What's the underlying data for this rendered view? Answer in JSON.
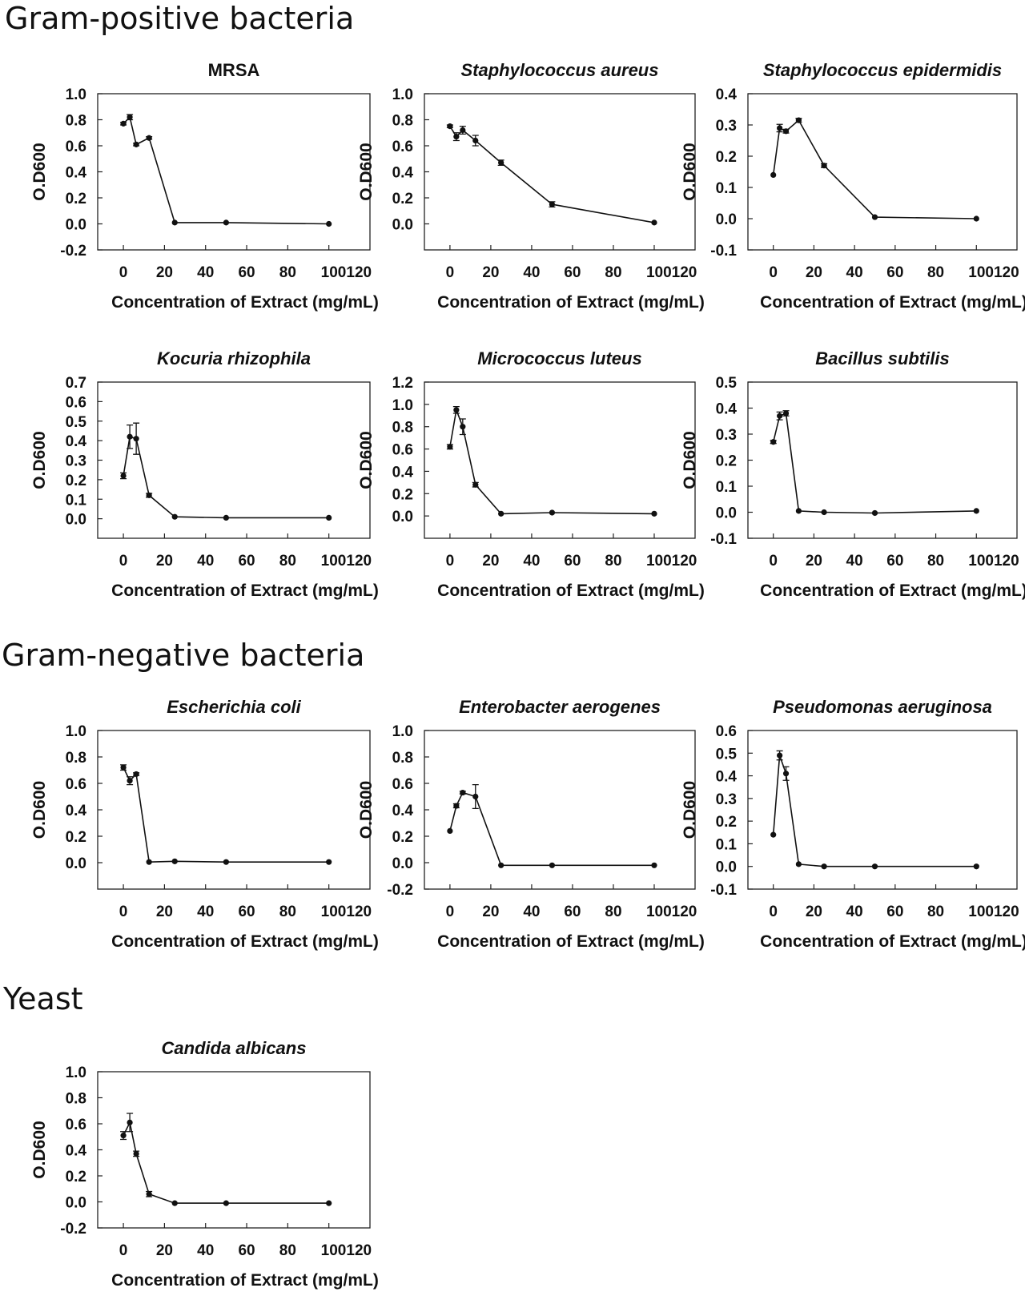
{
  "sections": [
    {
      "title": "Gram-positive bacteria"
    },
    {
      "title": "Gram-negative bacteria"
    },
    {
      "title": "Yeast"
    }
  ],
  "chart_data": [
    {
      "type": "line",
      "section": 0,
      "title": "MRSA",
      "title_italic": false,
      "xlabel": "Concentration of Extract (mg/mL)",
      "ylabel": "O.D600",
      "xlim": [
        -12.5,
        120
      ],
      "ylim": [
        -0.2,
        1.0
      ],
      "x_ticks": [
        "0",
        "20",
        "40",
        "60",
        "80",
        "100120"
      ],
      "x_tick_values": [
        0,
        20,
        40,
        60,
        80,
        100
      ],
      "y_ticks": [
        "-0.2",
        "0.0",
        "0.2",
        "0.4",
        "0.6",
        "0.8",
        "1.0"
      ],
      "y_tick_values": [
        -0.2,
        0,
        0.2,
        0.4,
        0.6,
        0.8,
        1.0
      ],
      "x": [
        0,
        3.125,
        6.25,
        12.5,
        25,
        50,
        100
      ],
      "y": [
        0.77,
        0.82,
        0.61,
        0.66,
        0.01,
        0.01,
        0.0
      ],
      "err": [
        0.01,
        0.02,
        0.01,
        0.01,
        0.005,
        0.005,
        0.005
      ]
    },
    {
      "type": "line",
      "section": 0,
      "title": "Staphylococcus aureus",
      "title_italic": true,
      "xlabel": "Concentration of Extract (mg/mL)",
      "ylabel": "O.D600",
      "xlim": [
        -12.5,
        120
      ],
      "ylim": [
        -0.2,
        1.0
      ],
      "x_ticks": [
        "0",
        "20",
        "40",
        "60",
        "80",
        "100120"
      ],
      "x_tick_values": [
        0,
        20,
        40,
        60,
        80,
        100
      ],
      "y_ticks": [
        "0.0",
        "0.2",
        "0.4",
        "0.6",
        "0.8",
        "1.0"
      ],
      "y_tick_values": [
        0,
        0.2,
        0.4,
        0.6,
        0.8,
        1.0
      ],
      "x": [
        0,
        3.125,
        6.25,
        12.5,
        25,
        50,
        100
      ],
      "y": [
        0.75,
        0.67,
        0.72,
        0.64,
        0.47,
        0.15,
        0.01
      ],
      "err": [
        0.01,
        0.03,
        0.03,
        0.04,
        0.02,
        0.02,
        0.005
      ]
    },
    {
      "type": "line",
      "section": 0,
      "title": "Staphylococcus epidermidis",
      "title_italic": true,
      "xlabel": "Concentration of Extract (mg/mL)",
      "ylabel": "O.D600",
      "xlim": [
        -12.5,
        120
      ],
      "ylim": [
        -0.1,
        0.4
      ],
      "x_ticks": [
        "0",
        "20",
        "40",
        "60",
        "80",
        "100120"
      ],
      "x_tick_values": [
        0,
        20,
        40,
        60,
        80,
        100
      ],
      "y_ticks": [
        "-0.1",
        "0.0",
        "0.1",
        "0.2",
        "0.3",
        "0.4"
      ],
      "y_tick_values": [
        -0.1,
        0,
        0.1,
        0.2,
        0.3,
        0.4
      ],
      "x": [
        0,
        3.125,
        6.25,
        12.5,
        25,
        50,
        100
      ],
      "y": [
        0.14,
        0.29,
        0.28,
        0.315,
        0.17,
        0.005,
        0.0
      ],
      "err": [
        0.003,
        0.012,
        0.006,
        0.006,
        0.006,
        0.002,
        0.002
      ]
    },
    {
      "type": "line",
      "section": 0,
      "title": "Kocuria rhizophila",
      "title_italic": true,
      "xlabel": "Concentration of Extract (mg/mL)",
      "ylabel": "O.D600",
      "xlim": [
        -12.5,
        120
      ],
      "ylim": [
        -0.1,
        0.7
      ],
      "x_ticks": [
        "0",
        "20",
        "40",
        "60",
        "80",
        "100120"
      ],
      "x_tick_values": [
        0,
        20,
        40,
        60,
        80,
        100
      ],
      "y_ticks": [
        "0.0",
        "0.1",
        "0.2",
        "0.3",
        "0.4",
        "0.5",
        "0.6",
        "0.7"
      ],
      "y_tick_values": [
        0,
        0.1,
        0.2,
        0.3,
        0.4,
        0.5,
        0.6,
        0.7
      ],
      "x": [
        0,
        3.125,
        6.25,
        12.5,
        25,
        50,
        100
      ],
      "y": [
        0.22,
        0.42,
        0.41,
        0.12,
        0.01,
        0.005,
        0.005
      ],
      "err": [
        0.015,
        0.06,
        0.08,
        0.01,
        0.003,
        0.002,
        0.002
      ]
    },
    {
      "type": "line",
      "section": 0,
      "title": "Micrococcus luteus",
      "title_italic": true,
      "xlabel": "Concentration of Extract (mg/mL)",
      "ylabel": "O.D600",
      "xlim": [
        -12.5,
        120
      ],
      "ylim": [
        -0.2,
        1.2
      ],
      "x_ticks": [
        "0",
        "20",
        "40",
        "60",
        "80",
        "100120"
      ],
      "x_tick_values": [
        0,
        20,
        40,
        60,
        80,
        100
      ],
      "y_ticks": [
        "0.0",
        "0.2",
        "0.4",
        "0.6",
        "0.8",
        "1.0",
        "1.2"
      ],
      "y_tick_values": [
        0,
        0.2,
        0.4,
        0.6,
        0.8,
        1.0,
        1.2
      ],
      "x": [
        0,
        3.125,
        6.25,
        12.5,
        25,
        50,
        100
      ],
      "y": [
        0.62,
        0.95,
        0.8,
        0.28,
        0.02,
        0.03,
        0.02
      ],
      "err": [
        0.02,
        0.03,
        0.07,
        0.02,
        0.005,
        0.005,
        0.005
      ]
    },
    {
      "type": "line",
      "section": 0,
      "title": "Bacillus subtilis",
      "title_italic": true,
      "xlabel": "Concentration of Extract (mg/mL)",
      "ylabel": "O.D600",
      "xlim": [
        -12.5,
        120
      ],
      "ylim": [
        -0.1,
        0.5
      ],
      "x_ticks": [
        "0",
        "20",
        "40",
        "60",
        "80",
        "100120"
      ],
      "x_tick_values": [
        0,
        20,
        40,
        60,
        80,
        100
      ],
      "y_ticks": [
        "-0.1",
        "0.0",
        "0.1",
        "0.2",
        "0.3",
        "0.4",
        "0.5"
      ],
      "y_tick_values": [
        -0.1,
        0,
        0.1,
        0.2,
        0.3,
        0.4,
        0.5
      ],
      "x": [
        0,
        3.125,
        6.25,
        12.5,
        25,
        50,
        100
      ],
      "y": [
        0.27,
        0.37,
        0.38,
        0.005,
        0.0,
        -0.003,
        0.005
      ],
      "err": [
        0.006,
        0.015,
        0.01,
        0.003,
        0.002,
        0.002,
        0.002
      ]
    },
    {
      "type": "line",
      "section": 1,
      "title": "Escherichia coli",
      "title_italic": true,
      "xlabel": "Concentration of Extract (mg/mL)",
      "ylabel": "O.D600",
      "xlim": [
        -12.5,
        120
      ],
      "ylim": [
        -0.2,
        1.0
      ],
      "x_ticks": [
        "0",
        "20",
        "40",
        "60",
        "80",
        "100120"
      ],
      "x_tick_values": [
        0,
        20,
        40,
        60,
        80,
        100
      ],
      "y_ticks": [
        "0.0",
        "0.2",
        "0.4",
        "0.6",
        "0.8",
        "1.0"
      ],
      "y_tick_values": [
        0,
        0.2,
        0.4,
        0.6,
        0.8,
        1.0
      ],
      "x": [
        0,
        3.125,
        6.25,
        12.5,
        25,
        50,
        100
      ],
      "y": [
        0.72,
        0.62,
        0.67,
        0.005,
        0.01,
        0.005,
        0.005
      ],
      "err": [
        0.02,
        0.03,
        0.01,
        0.003,
        0.003,
        0.002,
        0.002
      ]
    },
    {
      "type": "line",
      "section": 1,
      "title": "Enterobacter aerogenes",
      "title_italic": true,
      "xlabel": "Concentration of Extract (mg/mL)",
      "ylabel": "O.D600",
      "xlim": [
        -12.5,
        120
      ],
      "ylim": [
        -0.2,
        1.0
      ],
      "x_ticks": [
        "0",
        "20",
        "40",
        "60",
        "80",
        "100120"
      ],
      "x_tick_values": [
        0,
        20,
        40,
        60,
        80,
        100
      ],
      "y_ticks": [
        "-0.2",
        "0.0",
        "0.2",
        "0.4",
        "0.6",
        "0.8",
        "1.0"
      ],
      "y_tick_values": [
        -0.2,
        0,
        0.2,
        0.4,
        0.6,
        0.8,
        1.0
      ],
      "x": [
        0,
        3.125,
        6.25,
        12.5,
        25,
        50,
        100
      ],
      "y": [
        0.24,
        0.43,
        0.53,
        0.5,
        -0.02,
        -0.02,
        -0.02
      ],
      "err": [
        0.005,
        0.015,
        0.01,
        0.09,
        0.003,
        0.003,
        0.003
      ]
    },
    {
      "type": "line",
      "section": 1,
      "title": "Pseudomonas aeruginosa",
      "title_italic": true,
      "xlabel": "Concentration of Extract (mg/mL)",
      "ylabel": "O.D600",
      "xlim": [
        -12.5,
        120
      ],
      "ylim": [
        -0.1,
        0.6
      ],
      "x_ticks": [
        "0",
        "20",
        "40",
        "60",
        "80",
        "100120"
      ],
      "x_tick_values": [
        0,
        20,
        40,
        60,
        80,
        100
      ],
      "y_ticks": [
        "-0.1",
        "0.0",
        "0.1",
        "0.2",
        "0.3",
        "0.4",
        "0.5",
        "0.6"
      ],
      "y_tick_values": [
        -0.1,
        0,
        0.1,
        0.2,
        0.3,
        0.4,
        0.5,
        0.6
      ],
      "x": [
        0,
        3.125,
        6.25,
        12.5,
        25,
        50,
        100
      ],
      "y": [
        0.14,
        0.49,
        0.41,
        0.01,
        0.0,
        0.0,
        0.0
      ],
      "err": [
        0.005,
        0.02,
        0.03,
        0.003,
        0.002,
        0.002,
        0.002
      ]
    },
    {
      "type": "line",
      "section": 2,
      "title": "Candida albicans",
      "title_italic": true,
      "xlabel": "Concentration of Extract (mg/mL)",
      "ylabel": "O.D600",
      "xlim": [
        -12.5,
        120
      ],
      "ylim": [
        -0.2,
        1.0
      ],
      "x_ticks": [
        "0",
        "20",
        "40",
        "60",
        "80",
        "100120"
      ],
      "x_tick_values": [
        0,
        20,
        40,
        60,
        80,
        100
      ],
      "y_ticks": [
        "-0.2",
        "0.0",
        "0.2",
        "0.4",
        "0.6",
        "0.8",
        "1.0"
      ],
      "y_tick_values": [
        -0.2,
        0,
        0.2,
        0.4,
        0.6,
        0.8,
        1.0
      ],
      "x": [
        0,
        3.125,
        6.25,
        12.5,
        25,
        50,
        100
      ],
      "y": [
        0.51,
        0.61,
        0.37,
        0.06,
        -0.01,
        -0.01,
        -0.01
      ],
      "err": [
        0.03,
        0.07,
        0.02,
        0.02,
        0.003,
        0.003,
        0.003
      ]
    }
  ]
}
